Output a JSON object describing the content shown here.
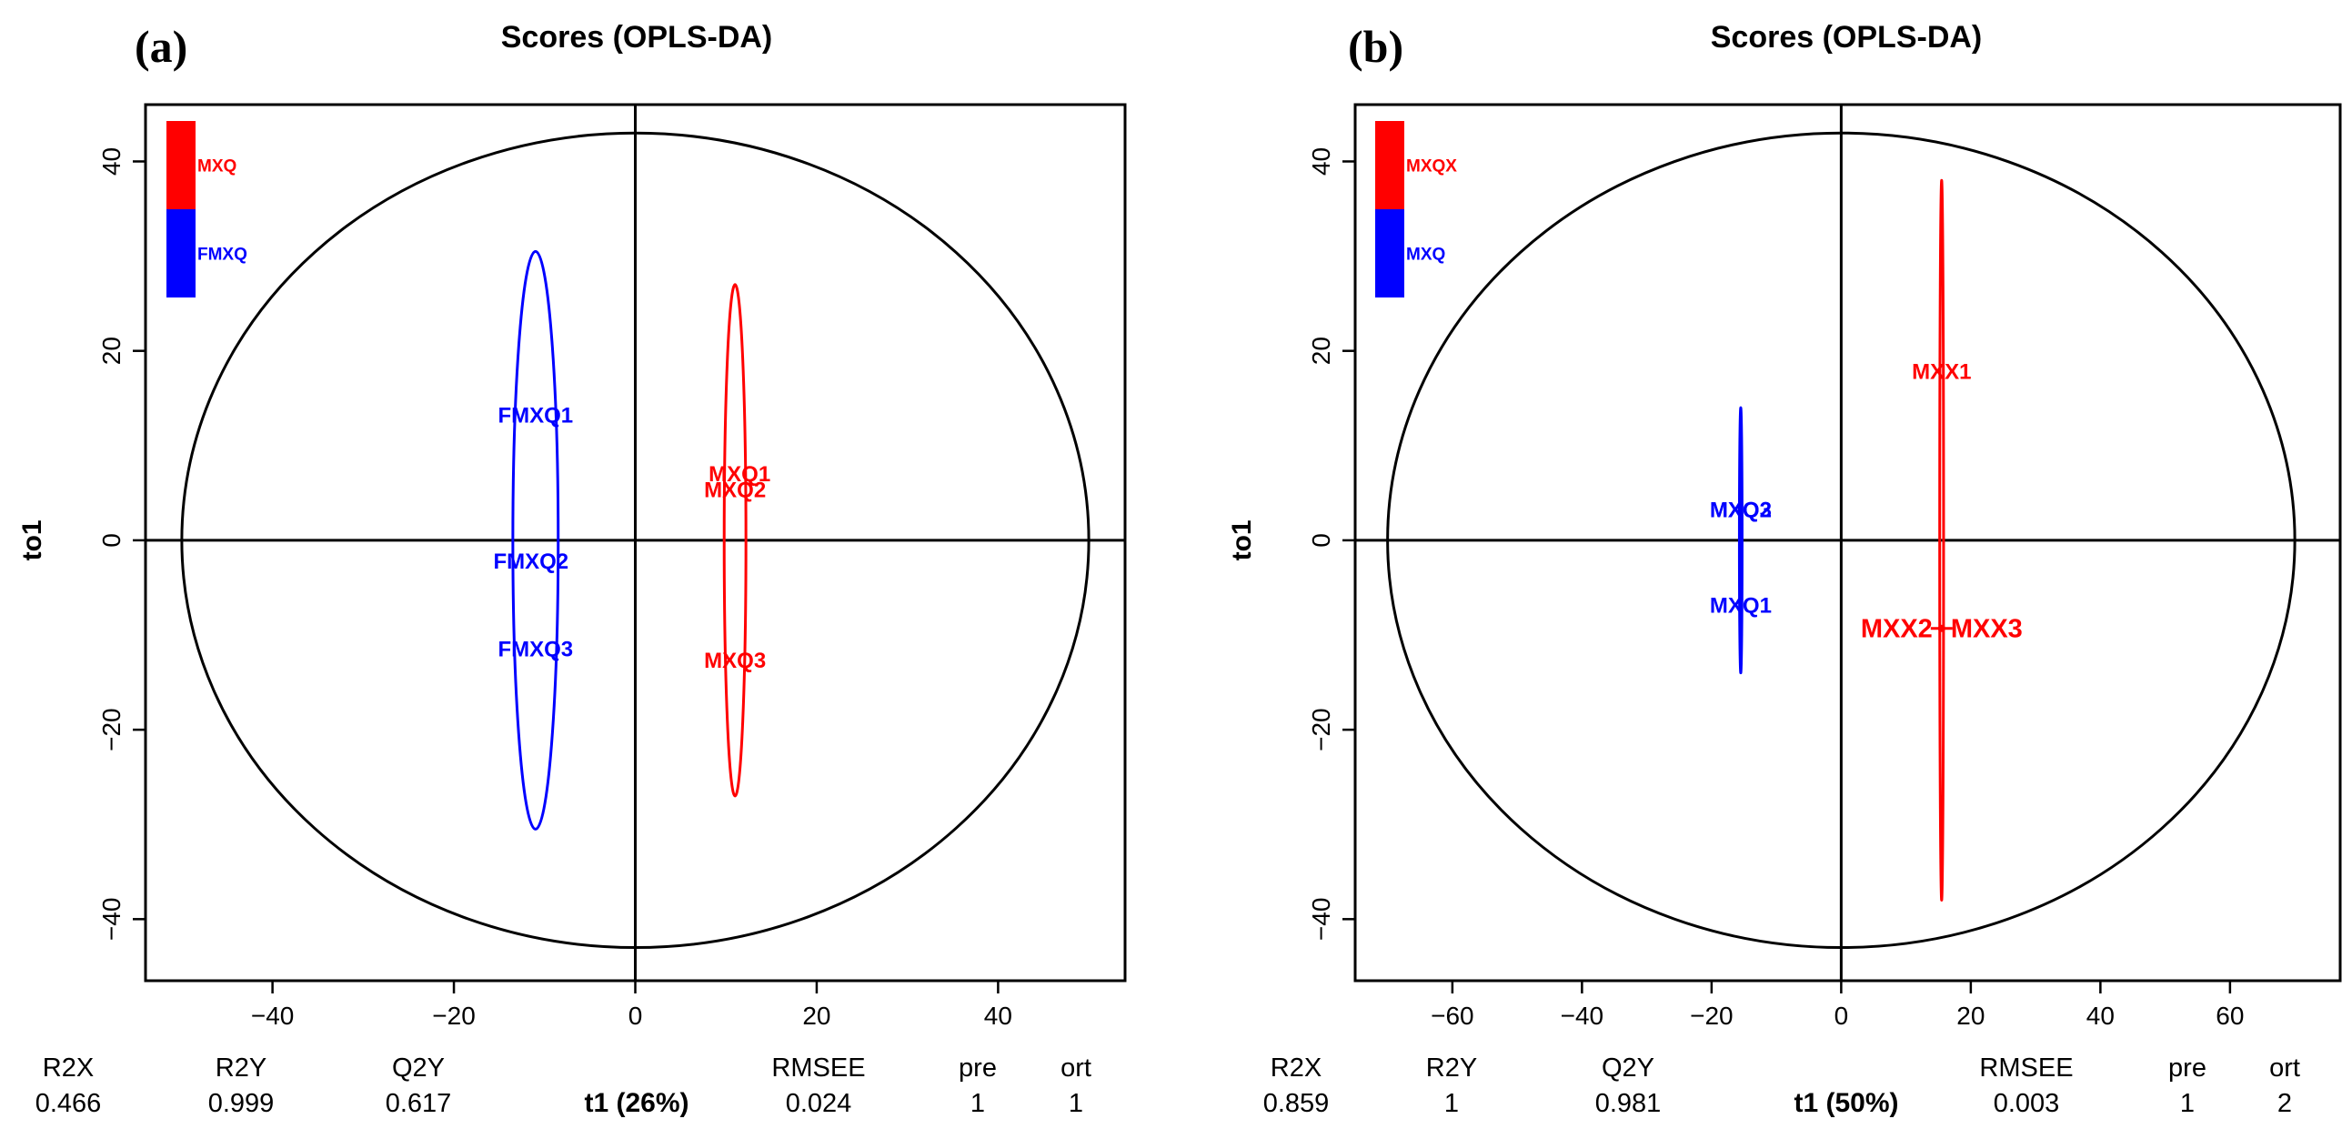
{
  "chart_data": [
    {
      "type": "scatter",
      "panel": "(a)",
      "title": "Scores (OPLS-DA)",
      "xlabel": "t1 (26%)",
      "ylabel": "to1",
      "xlim": [
        -54,
        54
      ],
      "ylim": [
        -46.5,
        46
      ],
      "xticks": [
        -40,
        -20,
        0,
        20,
        40
      ],
      "yticks": [
        -40,
        -20,
        0,
        20,
        40
      ],
      "legend": [
        {
          "name": "MXQ",
          "color": "#ff0000"
        },
        {
          "name": "FMXQ",
          "color": "#0000ff"
        }
      ],
      "hotelling": {
        "cx": 0,
        "cy": 0,
        "rx": 50,
        "ry": 43
      },
      "groups": [
        {
          "name": "FMXQ",
          "color": "#0000ff",
          "ellipse": {
            "cx": -11,
            "cy": 0,
            "rx": 2.5,
            "ry": 30.5
          },
          "points": [
            {
              "label": "FMXQ1",
              "x": -11,
              "y": 13.2
            },
            {
              "label": "FMXQ2",
              "x": -11.5,
              "y": -2.2
            },
            {
              "label": "FMXQ3",
              "x": -11,
              "y": -11.5
            }
          ]
        },
        {
          "name": "MXQ",
          "color": "#ff0000",
          "ellipse": {
            "cx": 11,
            "cy": 0,
            "rx": 1.2,
            "ry": 27
          },
          "points": [
            {
              "label": "MXQ1",
              "x": 11.5,
              "y": 7
            },
            {
              "label": "MXQ2",
              "x": 11,
              "y": 5.3
            },
            {
              "label": "MXQ3",
              "x": 11,
              "y": -12.7
            }
          ]
        }
      ],
      "stats": [
        {
          "label": "R2X",
          "value": "0.466"
        },
        {
          "label": "R2Y",
          "value": "0.999"
        },
        {
          "label": "Q2Y",
          "value": "0.617"
        },
        {
          "label": "RMSEE",
          "value": "0.024"
        },
        {
          "label": "pre",
          "value": "1"
        },
        {
          "label": "ort",
          "value": "1"
        }
      ]
    },
    {
      "type": "scatter",
      "panel": "(b)",
      "title": "Scores (OPLS-DA)",
      "xlabel": "t1 (50%)",
      "ylabel": "to1",
      "xlim": [
        -75,
        77
      ],
      "ylim": [
        -46.5,
        46
      ],
      "xticks": [
        -60,
        -40,
        -20,
        0,
        20,
        40,
        60
      ],
      "yticks": [
        -40,
        -20,
        0,
        20,
        40
      ],
      "legend": [
        {
          "name": "MXQX",
          "color": "#ff0000"
        },
        {
          "name": "MXQ",
          "color": "#0000ff"
        }
      ],
      "hotelling": {
        "cx": 0,
        "cy": 0,
        "rx": 70,
        "ry": 43
      },
      "groups": [
        {
          "name": "MXQ",
          "color": "#0000ff",
          "ellipse": {
            "cx": -15.5,
            "cy": 0,
            "rx": 0.15,
            "ry": 14
          },
          "points": [
            {
              "label": "MXQ2",
              "x": -15.5,
              "y": 3.2
            },
            {
              "label": "MXQ3",
              "x": -15.5,
              "y": 3.2
            },
            {
              "label": "MXQ1",
              "x": -15.5,
              "y": -6.9
            }
          ]
        },
        {
          "name": "MXQX",
          "color": "#ff0000",
          "ellipse": {
            "cx": 15.5,
            "cy": 0,
            "rx": 0.3,
            "ry": 38
          },
          "points": [
            {
              "label": "MXX1",
              "x": 15.5,
              "y": 17.8
            },
            {
              "label": "MXX2",
              "x": 15.5,
              "y": -9.3
            },
            {
              "label": "MXX3",
              "x": 15.5,
              "y": -9.3
            }
          ]
        }
      ],
      "stats": [
        {
          "label": "R2X",
          "value": "0.859"
        },
        {
          "label": "R2Y",
          "value": "1"
        },
        {
          "label": "Q2Y",
          "value": "0.981"
        },
        {
          "label": "RMSEE",
          "value": "0.003"
        },
        {
          "label": "pre",
          "value": "1"
        },
        {
          "label": "ort",
          "value": "2"
        }
      ]
    }
  ]
}
